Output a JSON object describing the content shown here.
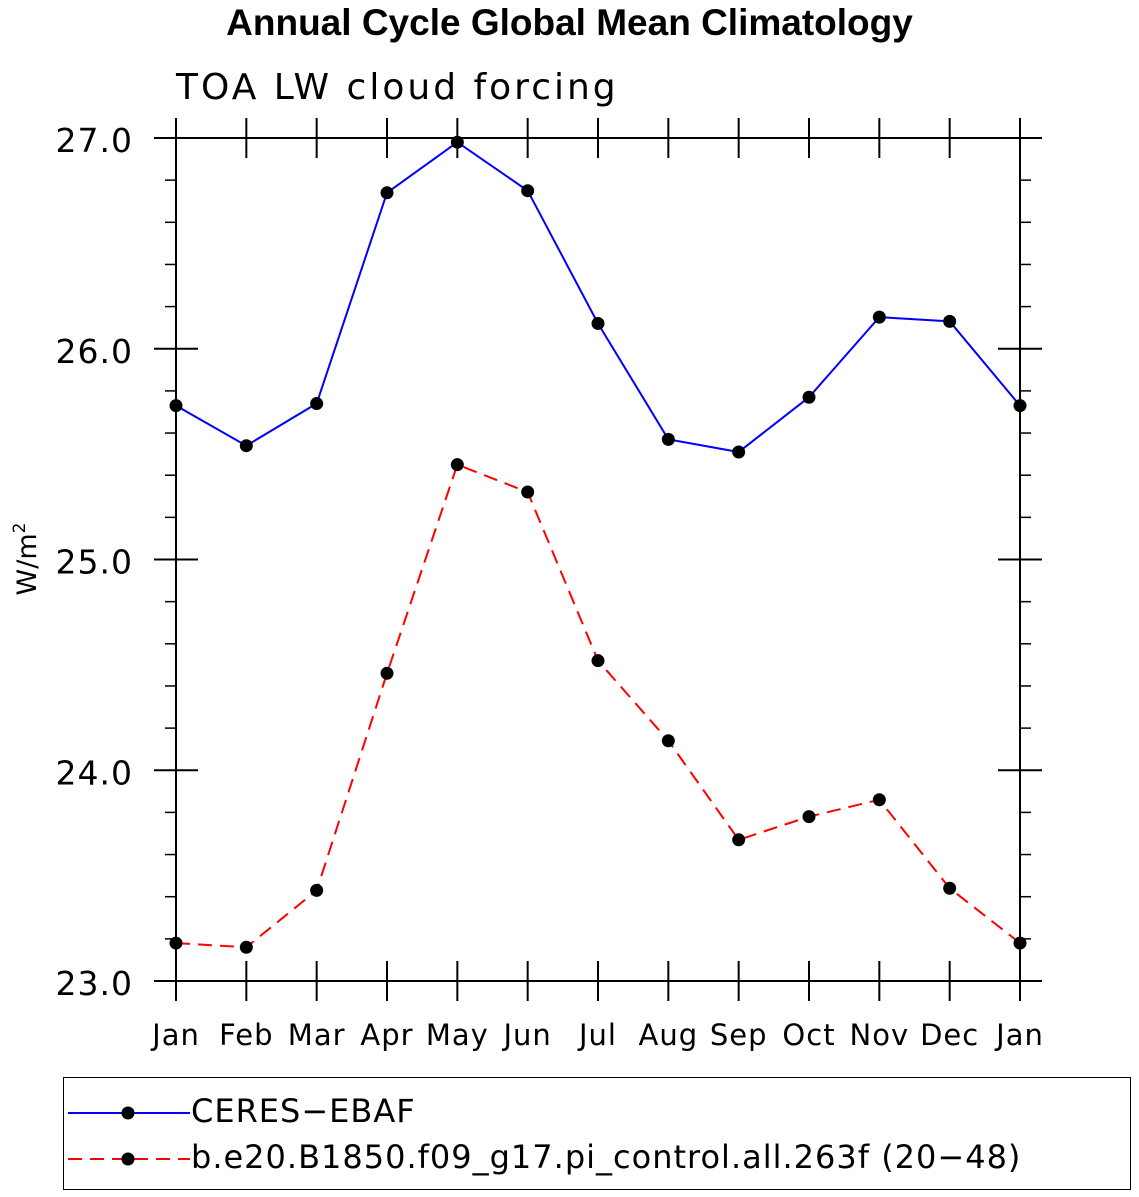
{
  "chart_data": {
    "type": "line",
    "title": "Annual Cycle Global Mean Climatology",
    "subtitle": "TOA LW cloud forcing",
    "xlabel": "",
    "ylabel_base": "W/m",
    "ylabel_superscript": "2",
    "categories": [
      "Jan",
      "Feb",
      "Mar",
      "Apr",
      "May",
      "Jun",
      "Jul",
      "Aug",
      "Sep",
      "Oct",
      "Nov",
      "Dec",
      "Jan"
    ],
    "ylim": [
      23.0,
      27.0
    ],
    "yticks": [
      23.0,
      24.0,
      25.0,
      26.0,
      27.0
    ],
    "ytick_labels": [
      "23.0",
      "24.0",
      "25.0",
      "26.0",
      "27.0"
    ],
    "yminor_step": 0.2,
    "grid": false,
    "legend_position": "bottom",
    "series": [
      {
        "name": "CERES−EBAF",
        "color": "#0000ff",
        "dash": "solid",
        "marker_color": "#000000",
        "values": [
          25.73,
          25.54,
          25.74,
          26.74,
          26.98,
          26.75,
          26.12,
          25.57,
          25.51,
          25.77,
          26.15,
          26.13,
          25.73
        ]
      },
      {
        "name": "b.e20.B1850.f09_g17.pi_control.all.263f (20−48)",
        "color": "#ff0000",
        "dash": "dashed",
        "marker_color": "#000000",
        "values": [
          23.18,
          23.16,
          23.43,
          24.46,
          25.45,
          25.32,
          24.52,
          24.14,
          23.67,
          23.78,
          23.86,
          23.44,
          23.18
        ]
      }
    ]
  }
}
